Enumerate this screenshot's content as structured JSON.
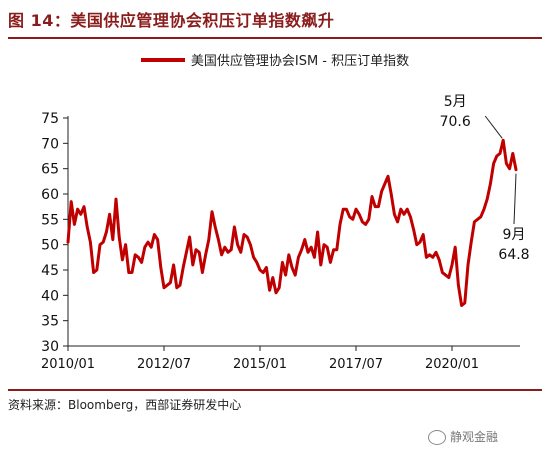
{
  "figure_title": "图 14：美国供应管理协会积压订单指数飙升",
  "source": "资料来源：Bloomberg，西部证券研发中心",
  "watermark": "静观金融",
  "chart_data": {
    "type": "line",
    "title": "",
    "xlabel": "",
    "ylabel": "",
    "ylim": [
      30,
      75
    ],
    "yticks": [
      30,
      35,
      40,
      45,
      50,
      55,
      60,
      65,
      70,
      75
    ],
    "x_tick_labels": [
      "2010/01",
      "2012/07",
      "2015/01",
      "2017/07",
      "2020/01"
    ],
    "legend_position": "top-center",
    "grid": false,
    "line_color": "#c00000",
    "series": [
      {
        "name": "美国供应管理协会ISM - 积压订单指数",
        "x": [
          "2010/01",
          "2010/02",
          "2010/03",
          "2010/04",
          "2010/05",
          "2010/06",
          "2010/07",
          "2010/08",
          "2010/09",
          "2010/10",
          "2010/11",
          "2010/12",
          "2011/01",
          "2011/02",
          "2011/03",
          "2011/04",
          "2011/05",
          "2011/06",
          "2011/07",
          "2011/08",
          "2011/09",
          "2011/10",
          "2011/11",
          "2011/12",
          "2012/01",
          "2012/02",
          "2012/03",
          "2012/04",
          "2012/05",
          "2012/06",
          "2012/07",
          "2012/08",
          "2012/09",
          "2012/10",
          "2012/11",
          "2012/12",
          "2013/01",
          "2013/02",
          "2013/03",
          "2013/04",
          "2013/05",
          "2013/06",
          "2013/07",
          "2013/08",
          "2013/09",
          "2013/10",
          "2013/11",
          "2013/12",
          "2014/01",
          "2014/02",
          "2014/03",
          "2014/04",
          "2014/05",
          "2014/06",
          "2014/07",
          "2014/08",
          "2014/09",
          "2014/10",
          "2014/11",
          "2014/12",
          "2015/01",
          "2015/02",
          "2015/03",
          "2015/04",
          "2015/05",
          "2015/06",
          "2015/07",
          "2015/08",
          "2015/09",
          "2015/10",
          "2015/11",
          "2015/12",
          "2016/01",
          "2016/02",
          "2016/03",
          "2016/04",
          "2016/05",
          "2016/06",
          "2016/07",
          "2016/08",
          "2016/09",
          "2016/10",
          "2016/11",
          "2016/12",
          "2017/01",
          "2017/02",
          "2017/03",
          "2017/04",
          "2017/05",
          "2017/06",
          "2017/07",
          "2017/08",
          "2017/09",
          "2017/10",
          "2017/11",
          "2017/12",
          "2018/01",
          "2018/02",
          "2018/03",
          "2018/04",
          "2018/05",
          "2018/06",
          "2018/07",
          "2018/08",
          "2018/09",
          "2018/10",
          "2018/11",
          "2018/12",
          "2019/01",
          "2019/02",
          "2019/03",
          "2019/04",
          "2019/05",
          "2019/06",
          "2019/07",
          "2019/08",
          "2019/09",
          "2019/10",
          "2019/11",
          "2019/12",
          "2020/01",
          "2020/02",
          "2020/03",
          "2020/04",
          "2020/05",
          "2020/06",
          "2020/07",
          "2020/08",
          "2020/09",
          "2020/10",
          "2020/11",
          "2020/12",
          "2021/01",
          "2021/02",
          "2021/03",
          "2021/04",
          "2021/05",
          "2021/06",
          "2021/07",
          "2021/08",
          "2021/09"
        ],
        "values": [
          50.5,
          58.5,
          54.0,
          57.0,
          56.0,
          57.5,
          53.5,
          50.5,
          44.5,
          45.0,
          50.0,
          50.5,
          52.5,
          56.0,
          51.0,
          59.0,
          51.5,
          47.0,
          50.0,
          44.5,
          44.5,
          48.0,
          47.5,
          46.5,
          49.5,
          50.5,
          49.5,
          52.0,
          51.0,
          45.5,
          41.5,
          42.0,
          42.5,
          46.0,
          41.5,
          42.0,
          45.5,
          48.5,
          51.5,
          46.0,
          49.0,
          48.5,
          44.5,
          48.0,
          51.0,
          56.5,
          53.5,
          51.0,
          48.0,
          49.5,
          48.5,
          49.0,
          53.5,
          50.0,
          48.5,
          52.0,
          51.5,
          50.0,
          47.5,
          46.5,
          45.0,
          44.5,
          45.5,
          41.0,
          43.5,
          40.5,
          41.5,
          46.5,
          44.0,
          48.0,
          45.5,
          44.0,
          47.5,
          49.0,
          51.0,
          48.5,
          49.5,
          47.5,
          52.5,
          46.0,
          50.0,
          49.5,
          46.5,
          49.0,
          49.0,
          54.0,
          57.0,
          57.0,
          55.5,
          55.0,
          57.0,
          56.0,
          54.5,
          54.0,
          55.0,
          59.5,
          57.5,
          57.5,
          60.5,
          62.0,
          63.5,
          60.0,
          56.0,
          54.5,
          57.0,
          56.0,
          57.0,
          55.5,
          53.0,
          50.0,
          50.5,
          52.0,
          47.5,
          48.0,
          47.5,
          48.5,
          47.0,
          44.5,
          44.0,
          43.5,
          46.0,
          49.5,
          42.0,
          38.0,
          38.5,
          46.0,
          50.5,
          54.5,
          55.0,
          55.5,
          57.0,
          59.0,
          62.0,
          66.0,
          67.5,
          68.0,
          70.6,
          66.0,
          65.0,
          68.0,
          64.8
        ]
      }
    ],
    "annotations": [
      {
        "label": "5月",
        "value_text": "70.6",
        "x": "2021/05",
        "y": 70.6
      },
      {
        "label": "9月",
        "value_text": "64.8",
        "x": "2021/09",
        "y": 64.8
      }
    ]
  }
}
